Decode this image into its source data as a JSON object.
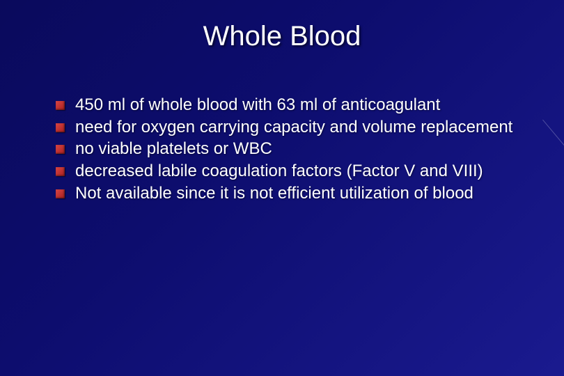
{
  "slide": {
    "title": "Whole Blood",
    "title_color": "#ffffff",
    "title_fontsize": 40,
    "background_gradient_from": "#0a0a5c",
    "background_gradient_to": "#1a1a8f",
    "bullet_marker_color": "#c02c2c",
    "body_color": "#ffffff",
    "body_fontsize": 24,
    "bullets": [
      "450 ml of whole blood with 63 ml of anticoagulant",
      "need for oxygen carrying capacity and volume replacement",
      "no viable platelets or WBC",
      "decreased labile coagulation factors (Factor V and VIII)",
      "Not available since it is not efficient utilization of blood"
    ]
  }
}
